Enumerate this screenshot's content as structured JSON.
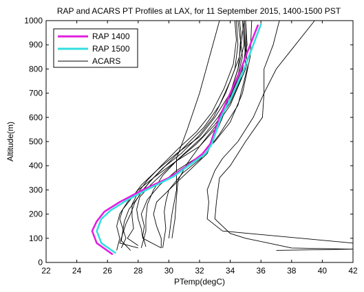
{
  "chart_data": {
    "type": "line",
    "title": "RAP and ACARS PT Profiles at LAX, for 11 September 2015, 1400-1500 PST",
    "xlabel": "PTemp(degC)",
    "ylabel": "Altitude(m)",
    "xlim": [
      22,
      42
    ],
    "ylim": [
      0,
      1000
    ],
    "xticks": [
      22,
      24,
      26,
      28,
      30,
      32,
      34,
      36,
      38,
      40,
      42
    ],
    "yticks": [
      0,
      100,
      200,
      300,
      400,
      500,
      600,
      700,
      800,
      900,
      1000
    ],
    "grid": false,
    "legend_position": "top-left",
    "legend": [
      "RAP 1400",
      "RAP 1500",
      "ACARS"
    ],
    "series": [
      {
        "name": "RAP 1400",
        "color": "#e01ee0",
        "points": [
          [
            26.3,
            35
          ],
          [
            25.3,
            80
          ],
          [
            25.0,
            130
          ],
          [
            25.3,
            170
          ],
          [
            25.8,
            210
          ],
          [
            26.8,
            250
          ],
          [
            28.3,
            300
          ],
          [
            30.0,
            350
          ],
          [
            31.2,
            400
          ],
          [
            32.2,
            450
          ],
          [
            32.7,
            490
          ],
          [
            33.3,
            600
          ],
          [
            34.0,
            700
          ],
          [
            34.7,
            800
          ],
          [
            35.3,
            900
          ],
          [
            35.8,
            980
          ]
        ]
      },
      {
        "name": "RAP 1500",
        "color": "#33dede",
        "points": [
          [
            26.5,
            40
          ],
          [
            25.6,
            80
          ],
          [
            25.3,
            130
          ],
          [
            25.6,
            180
          ],
          [
            26.2,
            215
          ],
          [
            27.2,
            255
          ],
          [
            28.7,
            305
          ],
          [
            30.3,
            355
          ],
          [
            31.5,
            410
          ],
          [
            32.4,
            450
          ],
          [
            32.8,
            490
          ],
          [
            33.4,
            600
          ],
          [
            34.2,
            700
          ],
          [
            34.9,
            800
          ],
          [
            35.5,
            900
          ],
          [
            36.0,
            985
          ]
        ]
      },
      {
        "name": "ACARS",
        "color": "#000000",
        "profiles": [
          [
            [
              34.5,
              1000
            ],
            [
              34.6,
              950
            ],
            [
              34.8,
              850
            ],
            [
              34.4,
              750
            ],
            [
              33.8,
              650
            ],
            [
              33.0,
              550
            ],
            [
              32.0,
              480
            ],
            [
              30.5,
              420
            ],
            [
              29.0,
              350
            ],
            [
              28.0,
              300
            ],
            [
              27.3,
              250
            ],
            [
              26.8,
              200
            ],
            [
              26.6,
              150
            ],
            [
              26.8,
              100
            ],
            [
              26.6,
              50
            ]
          ],
          [
            [
              34.8,
              1000
            ],
            [
              34.9,
              900
            ],
            [
              34.5,
              800
            ],
            [
              34.0,
              700
            ],
            [
              33.0,
              600
            ],
            [
              32.0,
              520
            ],
            [
              30.5,
              450
            ],
            [
              29.2,
              380
            ],
            [
              28.2,
              320
            ],
            [
              27.5,
              260
            ],
            [
              27.0,
              220
            ],
            [
              26.8,
              180
            ],
            [
              27.0,
              140
            ],
            [
              27.2,
              100
            ],
            [
              26.9,
              60
            ]
          ],
          [
            [
              34.3,
              1000
            ],
            [
              34.4,
              920
            ],
            [
              34.2,
              820
            ],
            [
              33.6,
              720
            ],
            [
              32.8,
              620
            ],
            [
              31.8,
              540
            ],
            [
              30.6,
              470
            ],
            [
              29.5,
              400
            ],
            [
              28.6,
              340
            ],
            [
              28.0,
              290
            ],
            [
              27.6,
              240
            ],
            [
              27.6,
              190
            ],
            [
              27.7,
              140
            ],
            [
              27.3,
              100
            ],
            [
              28.0,
              70
            ]
          ],
          [
            [
              35.0,
              1000
            ],
            [
              35.1,
              900
            ],
            [
              34.8,
              800
            ],
            [
              34.1,
              700
            ],
            [
              33.2,
              600
            ],
            [
              32.2,
              520
            ],
            [
              31.0,
              450
            ],
            [
              29.8,
              380
            ],
            [
              28.8,
              320
            ],
            [
              28.1,
              270
            ],
            [
              27.9,
              220
            ],
            [
              28.0,
              180
            ],
            [
              28.2,
              140
            ],
            [
              28.3,
              100
            ],
            [
              29.5,
              60
            ]
          ],
          [
            [
              34.6,
              1000
            ],
            [
              34.7,
              950
            ],
            [
              34.6,
              850
            ],
            [
              34.0,
              750
            ],
            [
              33.3,
              650
            ],
            [
              32.3,
              560
            ],
            [
              31.2,
              490
            ],
            [
              30.1,
              420
            ],
            [
              29.0,
              350
            ],
            [
              28.3,
              300
            ],
            [
              27.8,
              250
            ],
            [
              27.5,
              200
            ],
            [
              27.2,
              160
            ],
            [
              27.0,
              120
            ],
            [
              26.8,
              80
            ],
            [
              28.0,
              60
            ]
          ],
          [
            [
              34.4,
              1000
            ],
            [
              34.5,
              900
            ],
            [
              34.3,
              800
            ],
            [
              33.7,
              700
            ],
            [
              32.9,
              600
            ],
            [
              31.9,
              520
            ],
            [
              30.8,
              450
            ],
            [
              29.6,
              390
            ],
            [
              28.7,
              330
            ],
            [
              28.0,
              270
            ],
            [
              27.4,
              220
            ],
            [
              27.1,
              170
            ],
            [
              27.0,
              130
            ],
            [
              26.9,
              90
            ],
            [
              27.5,
              50
            ]
          ],
          [
            [
              35.4,
              1000
            ],
            [
              35.3,
              850
            ],
            [
              34.8,
              700
            ],
            [
              34.0,
              580
            ],
            [
              33.0,
              500
            ],
            [
              32.0,
              440
            ],
            [
              30.5,
              380
            ],
            [
              29.4,
              320
            ],
            [
              28.6,
              260
            ],
            [
              28.2,
              200
            ],
            [
              28.4,
              150
            ],
            [
              28.3,
              110
            ],
            [
              28.5,
              65
            ]
          ],
          [
            [
              34.9,
              1000
            ],
            [
              35.0,
              880
            ],
            [
              34.7,
              760
            ],
            [
              34.0,
              660
            ],
            [
              33.0,
              570
            ],
            [
              31.8,
              490
            ],
            [
              30.5,
              420
            ],
            [
              29.6,
              360
            ],
            [
              29.0,
              300
            ],
            [
              28.6,
              240
            ],
            [
              28.5,
              180
            ],
            [
              28.5,
              130
            ],
            [
              28.2,
              60
            ]
          ],
          [
            [
              29.5,
              60
            ],
            [
              29.5,
              100
            ],
            [
              29.2,
              150
            ],
            [
              29.0,
              200
            ],
            [
              29.2,
              250
            ],
            [
              30.5,
              330
            ],
            [
              32.5,
              450
            ],
            [
              33.5,
              600
            ],
            [
              34.5,
              800
            ],
            [
              34.9,
              1000
            ]
          ],
          [
            [
              35.0,
              1000
            ],
            [
              35.1,
              800
            ],
            [
              34.5,
              650
            ],
            [
              33.3,
              530
            ],
            [
              32.1,
              430
            ],
            [
              30.9,
              370
            ],
            [
              30.0,
              300
            ],
            [
              29.8,
              250
            ],
            [
              29.7,
              210
            ],
            [
              29.8,
              140
            ],
            [
              29.6,
              60
            ]
          ],
          [
            [
              33.3,
              1000
            ],
            [
              32.0,
              700
            ],
            [
              31.2,
              550
            ],
            [
              30.5,
              430
            ],
            [
              30.5,
              300
            ],
            [
              30.2,
              200
            ],
            [
              30.0,
              100
            ]
          ],
          [
            [
              34.9,
              1000
            ],
            [
              35.0,
              800
            ],
            [
              34.0,
              650
            ],
            [
              33.0,
              560
            ],
            [
              32.0,
              480
            ],
            [
              31.2,
              410
            ],
            [
              30.6,
              340
            ],
            [
              30.5,
              270
            ],
            [
              30.4,
              180
            ],
            [
              30.2,
              100
            ]
          ],
          [
            [
              37.2,
              1000
            ],
            [
              36.8,
              900
            ],
            [
              36.2,
              800
            ],
            [
              36.2,
              700
            ],
            [
              35.5,
              600
            ],
            [
              34.5,
              500
            ],
            [
              33.5,
              430
            ],
            [
              33.0,
              380
            ],
            [
              32.5,
              300
            ],
            [
              32.6,
              250
            ],
            [
              32.5,
              180
            ],
            [
              33.5,
              130
            ],
            [
              42.0,
              80
            ]
          ],
          [
            [
              39.5,
              1000
            ],
            [
              38.0,
              880
            ],
            [
              37.0,
              800
            ],
            [
              36.2,
              700
            ],
            [
              36.1,
              600
            ],
            [
              35.0,
              500
            ],
            [
              34.0,
              400
            ],
            [
              33.3,
              350
            ],
            [
              33.1,
              250
            ],
            [
              33.0,
              180
            ],
            [
              34.0,
              120
            ],
            [
              35.0,
              100
            ],
            [
              36.5,
              80
            ],
            [
              38.0,
              60
            ],
            [
              42.0,
              55
            ],
            [
              37.0,
              50
            ]
          ]
        ]
      }
    ]
  }
}
